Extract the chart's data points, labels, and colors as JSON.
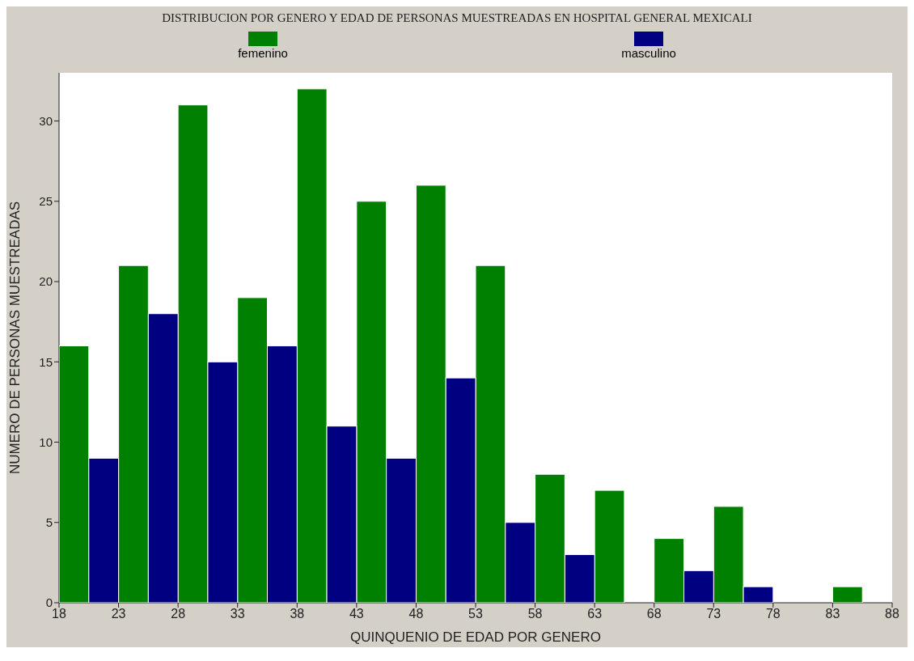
{
  "chart_data": {
    "type": "bar",
    "title": "DISTRIBUCION POR GENERO Y EDAD DE PERSONAS MUESTREADAS  EN HOSPITAL GENERAL MEXICALI",
    "xlabel": "QUINQUENIO DE EDAD POR GENERO",
    "ylabel": "NUMERO DE PERSONAS MUESTREADAS",
    "x": [
      20.5,
      25.5,
      30.5,
      35.5,
      40.5,
      45.5,
      50.5,
      55.5,
      60.5,
      65.5,
      70.5,
      75.5,
      80.5,
      85.5
    ],
    "series": [
      {
        "name": "femenino",
        "color": "#008000",
        "values": [
          16,
          21,
          31,
          19,
          32,
          25,
          26,
          21,
          8,
          7,
          4,
          6,
          0,
          1
        ]
      },
      {
        "name": "masculino",
        "color": "#000080",
        "values": [
          9,
          18,
          15,
          16,
          11,
          9,
          14,
          5,
          3,
          0,
          2,
          1,
          0,
          0
        ]
      }
    ],
    "xlim": [
      18,
      88
    ],
    "xticks": [
      18,
      23,
      28,
      33,
      38,
      43,
      48,
      53,
      58,
      63,
      68,
      73,
      78,
      83,
      88
    ],
    "ylim": [
      0,
      33
    ],
    "yticks": [
      0,
      5,
      10,
      15,
      20,
      25,
      30
    ],
    "legend": "top"
  }
}
